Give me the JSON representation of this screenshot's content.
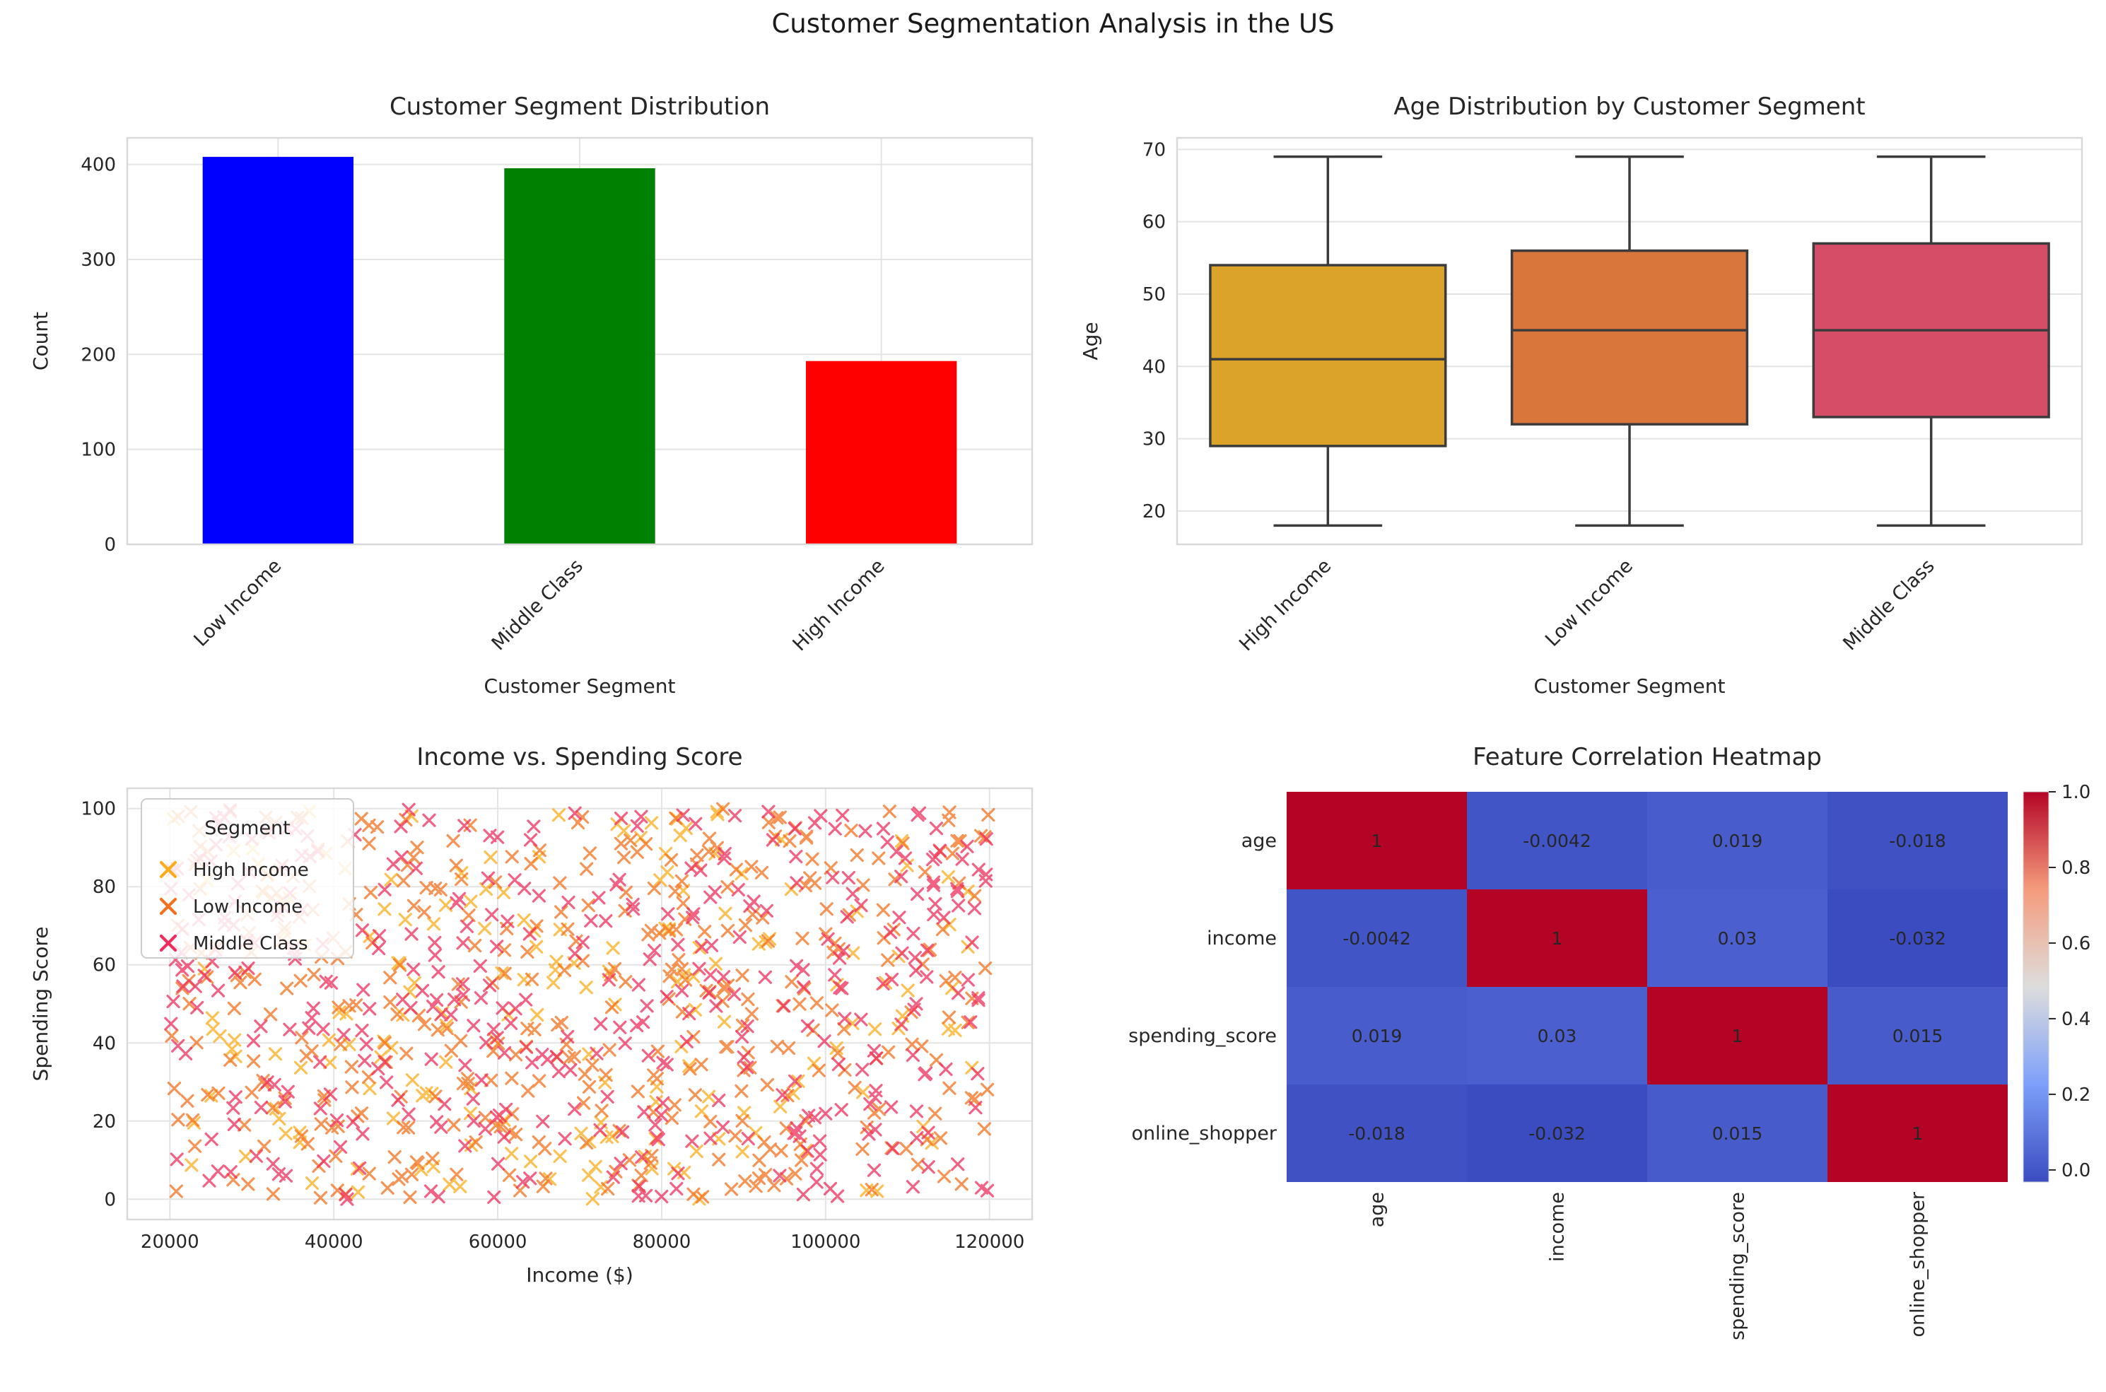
{
  "figure": {
    "title": "Customer Segmentation Analysis in the US"
  },
  "style": {
    "text_color": "#262626",
    "grid_color": "#e4e4e4",
    "spine_color": "#d9d9d9",
    "background": "#ffffff",
    "legend_border": "#cccccc"
  },
  "chart_data": [
    {
      "type": "bar",
      "title": "Customer Segment Distribution",
      "xlabel": "Customer Segment",
      "ylabel": "Count",
      "categories": [
        "Low Income",
        "Middle Class",
        "High Income"
      ],
      "values": [
        408,
        396,
        193
      ],
      "bar_colors": [
        "#0000ff",
        "#008000",
        "#ff0000"
      ],
      "yticks": [
        0,
        100,
        200,
        300,
        400
      ],
      "ylim": [
        0,
        428
      ],
      "xtick_rotation": 45,
      "grid": true
    },
    {
      "type": "box",
      "title": "Age Distribution by Customer Segment",
      "xlabel": "Customer Segment",
      "ylabel": "Age",
      "categories": [
        "High Income",
        "Low Income",
        "Middle Class"
      ],
      "series": [
        {
          "name": "High Income",
          "whisker_low": 18,
          "q1": 29,
          "median": 41,
          "q3": 54,
          "whisker_high": 69,
          "color": "#dca32b"
        },
        {
          "name": "Low Income",
          "whisker_low": 18,
          "q1": 32,
          "median": 45,
          "q3": 56,
          "whisker_high": 69,
          "color": "#d8763b"
        },
        {
          "name": "Middle Class",
          "whisker_low": 18,
          "q1": 33,
          "median": 45,
          "q3": 57,
          "whisker_high": 69,
          "color": "#d64d68"
        }
      ],
      "edge_color": "#3b3b3b",
      "yticks": [
        20,
        30,
        40,
        50,
        60,
        70
      ],
      "ylim": [
        15.4,
        71.6
      ],
      "xtick_rotation": 45,
      "grid": true
    },
    {
      "type": "scatter",
      "title": "Income vs. Spending Score",
      "xlabel": "Income ($)",
      "ylabel": "Spending Score",
      "legend_title": "Segment",
      "marker": "x",
      "marker_alpha": 0.75,
      "series": [
        {
          "name": "High Income",
          "color": "#fbac1b",
          "count": 193,
          "seed": 101
        },
        {
          "name": "Low Income",
          "color": "#f3701e",
          "count": 408,
          "seed": 202
        },
        {
          "name": "Middle Class",
          "color": "#ee2d5c",
          "count": 396,
          "seed": 303
        }
      ],
      "x_range": [
        20000,
        120000
      ],
      "y_range": [
        0,
        100
      ],
      "xticks": [
        20000,
        40000,
        60000,
        80000,
        100000,
        120000
      ],
      "yticks": [
        0,
        20,
        40,
        60,
        80,
        100
      ],
      "xlim": [
        14800,
        125200
      ],
      "ylim": [
        -5.2,
        105.2
      ],
      "grid": true
    },
    {
      "type": "heatmap",
      "title": "Feature Correlation Heatmap",
      "labels": [
        "age",
        "income",
        "spending_score",
        "online_shopper"
      ],
      "matrix": [
        [
          1,
          -0.0042,
          0.019,
          -0.018
        ],
        [
          -0.0042,
          1,
          0.03,
          -0.032
        ],
        [
          0.019,
          0.03,
          1,
          0.015
        ],
        [
          -0.018,
          -0.032,
          0.015,
          1
        ]
      ],
      "cell_text": [
        [
          "1",
          "-0.0042",
          "0.019",
          "-0.018"
        ],
        [
          "-0.0042",
          "1",
          "0.03",
          "-0.032"
        ],
        [
          "0.019",
          "0.03",
          "1",
          "0.015"
        ],
        [
          "-0.018",
          "-0.032",
          "0.015",
          "1"
        ]
      ],
      "cell_text_color": "#ffffff",
      "colormap": "coolwarm",
      "colormap_anchors": [
        "#3b4cc0",
        "#7c9ff9",
        "#dddddd",
        "#f59c7d",
        "#b40426"
      ],
      "vmin": -0.032,
      "vmax": 1.0,
      "colorbar_ticks": [
        0.0,
        0.2,
        0.4,
        0.6,
        0.8,
        1.0
      ]
    }
  ]
}
